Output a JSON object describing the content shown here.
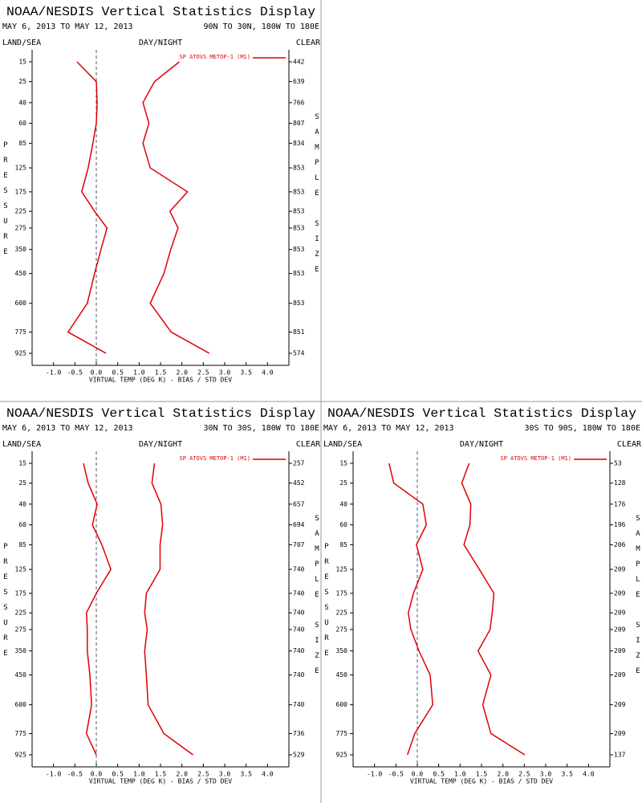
{
  "chart_data": [
    {
      "type": "line",
      "title": "NOAA/NESDIS Vertical Statistics Display",
      "date_range": "MAY 6, 2013 TO MAY 12, 2013",
      "region": "90N TO 30N, 180W TO 180E",
      "land_sea": "LAND/SEA",
      "day_night": "DAY/NIGHT",
      "clear": "CLEAR",
      "y_label": "PRESSURE",
      "y2_label": "SAMPLE SIZE",
      "x_label": "VIRTUAL TEMP (DEG K) - BIAS / STD DEV",
      "y": [
        15,
        25,
        40,
        60,
        85,
        125,
        175,
        225,
        275,
        350,
        450,
        600,
        775,
        925
      ],
      "ylim": [
        15,
        925
      ],
      "sample_size": [
        442,
        639,
        766,
        807,
        834,
        853,
        853,
        853,
        853,
        853,
        853,
        853,
        851,
        574
      ],
      "series": [
        {
          "name": "SP ATOVS METOP-1 (M1)",
          "color": "#e00000",
          "bias": [
            -0.45,
            0.0,
            0.02,
            0.0,
            -0.08,
            -0.19,
            -0.34,
            -0.04,
            0.25,
            0.11,
            -0.04,
            -0.21,
            -0.66,
            0.23
          ],
          "std_dev": [
            1.94,
            1.36,
            1.09,
            1.23,
            1.09,
            1.26,
            2.13,
            1.72,
            1.91,
            1.74,
            1.58,
            1.26,
            1.75,
            2.64
          ]
        }
      ],
      "xlim": [
        -1.5,
        4.5
      ],
      "xticks": [
        {
          "value": -1,
          "label": "-1.0"
        },
        -0.5,
        {
          "value": 0,
          "label": "0.0"
        },
        0.5,
        {
          "value": 1,
          "label": "1.0"
        },
        1.5,
        {
          "value": 2,
          "label": "2.0"
        },
        2.5,
        {
          "value": 3,
          "label": "3.0"
        },
        3.5,
        {
          "value": 4,
          "label": "4.0"
        }
      ]
    },
    {
      "type": "line",
      "title": "NOAA/NESDIS Vertical Statistics Display",
      "date_range": "MAY 6, 2013 TO MAY 12, 2013",
      "region": "30N TO 30S, 180W TO 180E",
      "land_sea": "LAND/SEA",
      "day_night": "DAY/NIGHT",
      "clear": "CLEAR",
      "y_label": "PRESSURE",
      "y2_label": "SAMPLE SIZE",
      "x_label": "VIRTUAL TEMP (DEG K) - BIAS / STD DEV",
      "y": [
        15,
        25,
        40,
        60,
        85,
        125,
        175,
        225,
        275,
        350,
        450,
        600,
        775,
        925
      ],
      "ylim": [
        15,
        925
      ],
      "sample_size": [
        257,
        452,
        657,
        694,
        707,
        740,
        740,
        740,
        740,
        740,
        740,
        740,
        736,
        529
      ],
      "series": [
        {
          "name": "SP ATOVS METOP-1 (M1)",
          "color": "#e00000",
          "bias": [
            -0.3,
            -0.19,
            0.02,
            -0.09,
            0.13,
            0.34,
            0.0,
            -0.23,
            -0.21,
            -0.21,
            -0.15,
            -0.11,
            -0.23,
            0.0
          ],
          "std_dev": [
            1.36,
            1.3,
            1.51,
            1.55,
            1.49,
            1.49,
            1.17,
            1.13,
            1.19,
            1.13,
            1.17,
            1.21,
            1.58,
            2.26
          ]
        }
      ],
      "xlim": [
        -1.5,
        4.5
      ],
      "xticks": [
        {
          "value": -1,
          "label": "-1.0"
        },
        -0.5,
        {
          "value": 0,
          "label": "0.0"
        },
        0.5,
        {
          "value": 1,
          "label": "1.0"
        },
        1.5,
        {
          "value": 2,
          "label": "2.0"
        },
        2.5,
        {
          "value": 3,
          "label": "3.0"
        },
        3.5,
        {
          "value": 4,
          "label": "4.0"
        }
      ]
    },
    {
      "type": "line",
      "title": "NOAA/NESDIS Vertical Statistics Display",
      "date_range": "MAY 6, 2013 TO MAY 12, 2013",
      "region": "30S TO 90S, 180W TO 180E",
      "land_sea": "LAND/SEA",
      "day_night": "DAY/NIGHT",
      "clear": "CLEAR",
      "y_label": "PRESSURE",
      "y2_label": "SAMPLE SIZE",
      "x_label": "VIRTUAL TEMP (DEG K) - BIAS / STD DEV",
      "y": [
        15,
        25,
        40,
        60,
        85,
        125,
        175,
        225,
        275,
        350,
        450,
        600,
        775,
        925
      ],
      "ylim": [
        15,
        925
      ],
      "sample_size": [
        53,
        128,
        176,
        196,
        206,
        209,
        209,
        209,
        209,
        209,
        209,
        209,
        209,
        137
      ],
      "series": [
        {
          "name": "SP ATOVS METOP-1 (M1)",
          "color": "#e00000",
          "bias": [
            -0.66,
            -0.55,
            0.13,
            0.21,
            -0.02,
            0.13,
            -0.09,
            -0.21,
            -0.15,
            0.04,
            0.3,
            0.36,
            -0.06,
            -0.23
          ],
          "std_dev": [
            1.21,
            1.04,
            1.25,
            1.23,
            1.09,
            1.45,
            1.79,
            1.75,
            1.7,
            1.42,
            1.72,
            1.53,
            1.72,
            2.51
          ]
        }
      ],
      "xlim": [
        -1.5,
        4.5
      ],
      "xticks": [
        {
          "value": -1,
          "label": "-1.0"
        },
        -0.5,
        {
          "value": 0,
          "label": "0.0"
        },
        0.5,
        {
          "value": 1,
          "label": "1.0"
        },
        1.5,
        {
          "value": 2,
          "label": "2.0"
        },
        2.5,
        {
          "value": 3,
          "label": "3.0"
        },
        3.5,
        {
          "value": 4,
          "label": "4.0"
        }
      ]
    }
  ]
}
